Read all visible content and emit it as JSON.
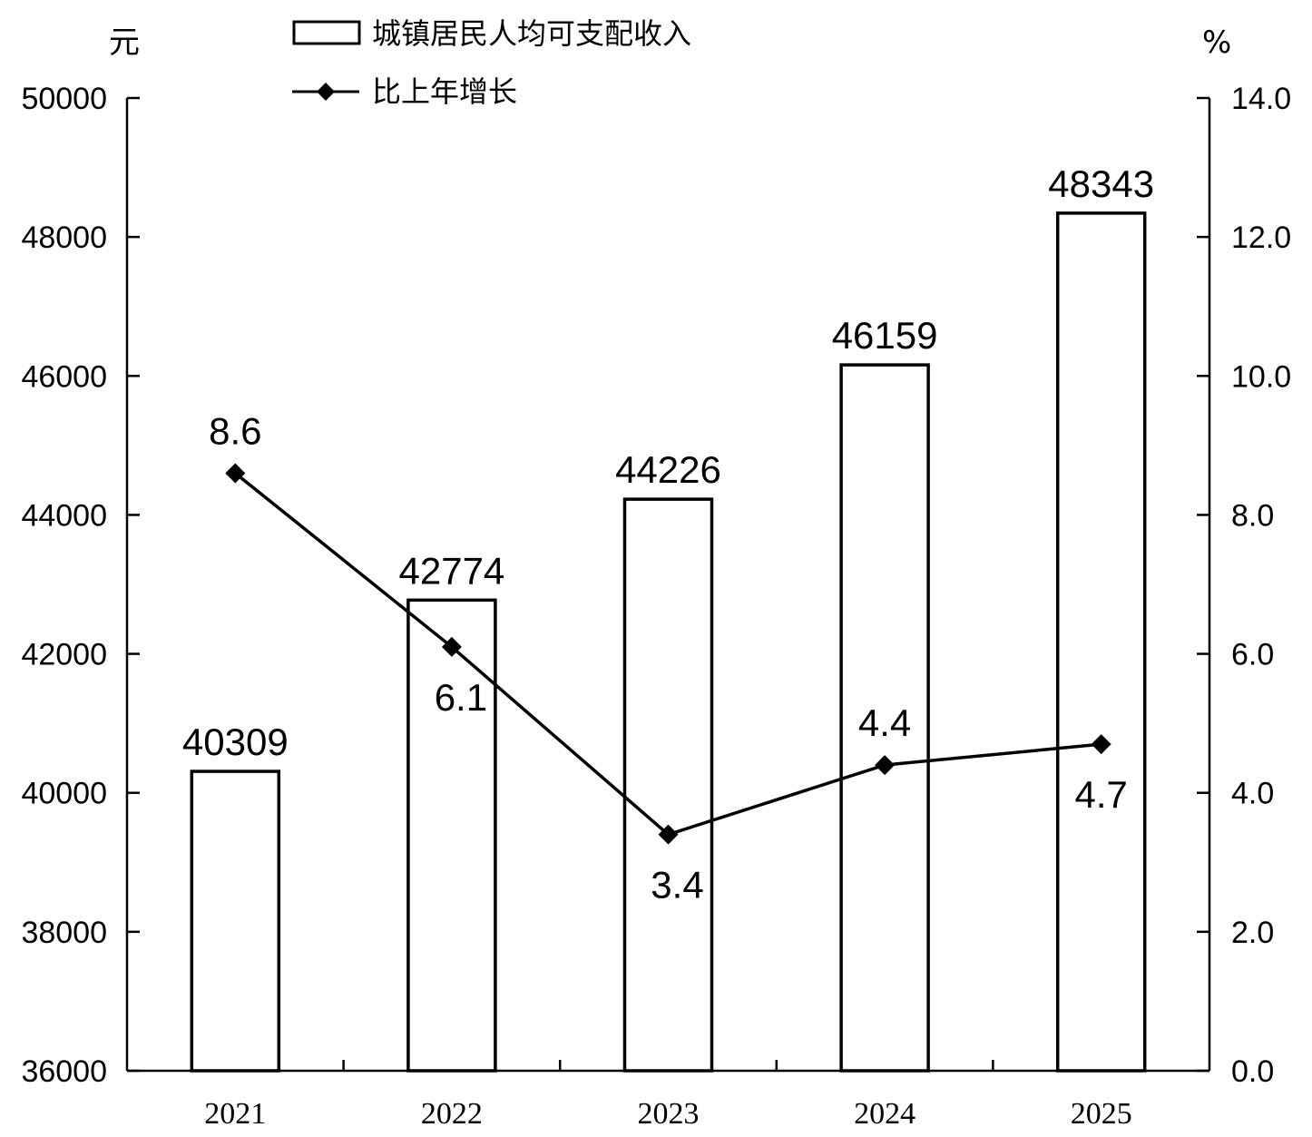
{
  "chart_data": {
    "type": "bar",
    "categories": [
      "2021",
      "2022",
      "2023",
      "2024",
      "2025"
    ],
    "series": [
      {
        "name": "城镇居民人均可支配收入",
        "type": "bar",
        "axis": "left",
        "values": [
          40309,
          42774,
          44226,
          46159,
          48343
        ],
        "labels": [
          "40309",
          "42774",
          "44226",
          "46159",
          "48343"
        ]
      },
      {
        "name": "比上年增长",
        "type": "line",
        "axis": "right",
        "marker": "diamond",
        "values": [
          8.6,
          6.1,
          3.4,
          4.4,
          4.7
        ],
        "labels": [
          "8.6",
          "6.1",
          "3.4",
          "4.4",
          "4.7"
        ]
      }
    ],
    "left_axis": {
      "unit": "元",
      "range": [
        36000,
        50000
      ],
      "ticks": [
        "36000",
        "38000",
        "40000",
        "42000",
        "44000",
        "46000",
        "48000",
        "50000"
      ]
    },
    "right_axis": {
      "unit": "%",
      "range": [
        0,
        14
      ],
      "ticks": [
        "0.0",
        "2.0",
        "4.0",
        "6.0",
        "8.0",
        "10.0",
        "12.0",
        "14.0"
      ]
    },
    "legend": {
      "position": "top-left",
      "entries": [
        "城镇居民人均可支配收入",
        "比上年增长"
      ]
    },
    "grid": false,
    "colors": {
      "bar_fill": "#ffffff",
      "stroke": "#000000"
    }
  }
}
